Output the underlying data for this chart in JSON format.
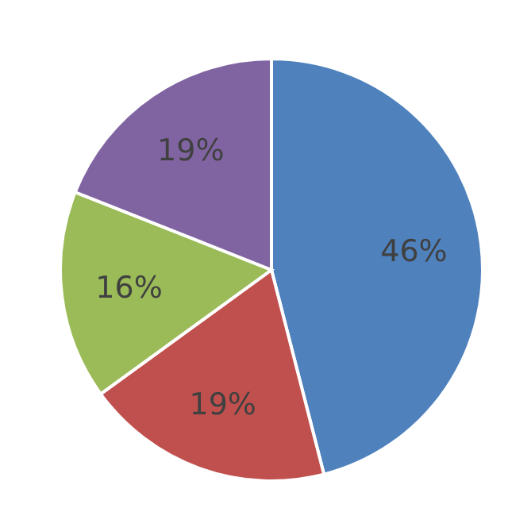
{
  "chart_data": {
    "type": "pie",
    "categories": [
      null,
      null,
      null,
      null
    ],
    "values": [
      46,
      19,
      16,
      19
    ],
    "colors": [
      "#4f81bd",
      "#c0504d",
      "#9bbb59",
      "#8064a2"
    ],
    "value_labels": [
      "46%",
      "19%",
      "16%",
      "19%"
    ],
    "legend": false
  }
}
